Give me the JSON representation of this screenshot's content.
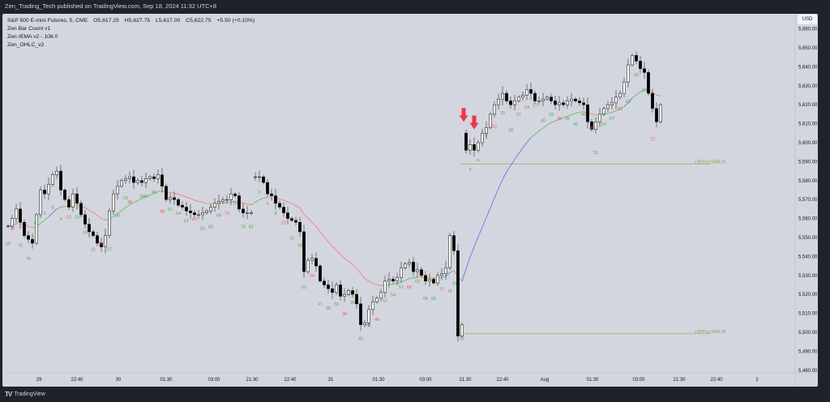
{
  "header": {
    "publish_line": "Zen_Trading_Tech published on TradingView.com, Sep 18, 2024 11:32 UTC+8"
  },
  "legend": {
    "symbol": "S&P 500 E-mini Futures, 5, CME",
    "open": "O5,617.25",
    "high": "H5,627.75",
    "low": "L5,617.00",
    "close": "C5,622.75",
    "change": "+5.50 (+0.10%)",
    "indicators": [
      "Zen Bar Count v1",
      "Zen rEMA v2 - 108.0",
      "Zen_OHLC_v2"
    ]
  },
  "axis": {
    "currency": "USD"
  },
  "footer": {
    "logo": "TV",
    "brand": "TradingView"
  },
  "colors": {
    "background": "#d3d6de",
    "up_body": "#ffffff",
    "down_body": "#000000",
    "ema_up": "#66bb6a",
    "ema_down": "#f77c80",
    "ema_flat": "#ffa726",
    "ema_strong": "#5b7cf0",
    "count_green": "#4caf50",
    "count_red": "#f7525f",
    "ref_line": "#a9ab6e",
    "arrow": "#f23645"
  },
  "chart_data": {
    "type": "candlestick",
    "ylim": [
      5480,
      5660
    ],
    "y_ticks": [
      5480,
      5490,
      5500,
      5510,
      5520,
      5530,
      5540,
      5550,
      5560,
      5570,
      5580,
      5590,
      5600,
      5610,
      5620,
      5630,
      5640,
      5650,
      5660
    ],
    "grid": false,
    "closes": [
      5556,
      5560,
      5565,
      5558,
      5551,
      5549,
      5547,
      5562,
      5575,
      5573,
      5578,
      5583,
      5585,
      5575,
      5570,
      5566,
      5573,
      5568,
      5562,
      5557,
      5553,
      5551,
      5547,
      5545,
      5551,
      5564,
      5573,
      5577,
      5580,
      5581,
      5582,
      5579,
      5580,
      5579,
      5581,
      5582,
      5581,
      5583,
      5577,
      5570,
      5571,
      5570,
      5567,
      5566,
      5564,
      5563,
      5562,
      5562,
      5563,
      5564,
      5566,
      5568,
      5569,
      5570,
      5570,
      5573,
      5572,
      5565,
      5563,
      5563,
      5563,
      5582,
      5582,
      5579,
      5573,
      5572,
      5568,
      5566,
      5563,
      5560,
      5559,
      5558,
      5553,
      5532,
      5538,
      5539,
      5535,
      5527,
      5525,
      5523,
      5521,
      5525,
      5519,
      5520,
      5522,
      5520,
      5515,
      5504,
      5505,
      5512,
      5516,
      5518,
      5521,
      5527,
      5528,
      5527,
      5529,
      5534,
      5536,
      5537,
      5532,
      5533,
      5530,
      5527,
      5528,
      5526,
      5530,
      5531,
      5534,
      5551,
      5543,
      5498,
      5504,
      5596,
      5599,
      5596,
      5600,
      5605,
      5608,
      5615,
      5620,
      5623,
      5626,
      5622,
      5620,
      5622,
      5624,
      5625,
      5628,
      5626,
      5622,
      5622,
      5623,
      5624,
      5622,
      5620,
      5621,
      5620,
      5622,
      5623,
      5622,
      5621,
      5620,
      5611,
      5607,
      5611,
      5615,
      5618,
      5620,
      5621,
      5624,
      5626,
      5632,
      5641,
      5646,
      5643,
      5639,
      5637,
      5626,
      5618,
      5611,
      5620
    ],
    "session_opens": [
      {
        "bar": 61,
        "open": 5582
      },
      {
        "bar": 113,
        "open": 5605
      }
    ],
    "x_ticks": [
      {
        "bar": 7.6,
        "label": "29"
      },
      {
        "bar": 17,
        "label": "22:40"
      },
      {
        "bar": 27.2,
        "label": "30"
      },
      {
        "bar": 39,
        "label": "01:30"
      },
      {
        "bar": 50.8,
        "label": "03:00"
      },
      {
        "bar": 60.2,
        "label": "21:30"
      },
      {
        "bar": 69.6,
        "label": "22:40"
      },
      {
        "bar": 79.6,
        "label": "31"
      },
      {
        "bar": 91.4,
        "label": "01:30"
      },
      {
        "bar": 103,
        "label": "03:00"
      },
      {
        "bar": 112.8,
        "label": "21:30"
      },
      {
        "bar": 122,
        "label": "22:40"
      },
      {
        "bar": 132.4,
        "label": "Aug"
      },
      {
        "bar": 144.2,
        "label": "01:30"
      },
      {
        "bar": 155.6,
        "label": "03:00"
      },
      {
        "bar": 165.6,
        "label": "21:30"
      },
      {
        "bar": 174.8,
        "label": "22:40"
      },
      {
        "bar": 184.8,
        "label": "2"
      }
    ],
    "reference_lines": [
      {
        "label": "y.RTH.hi",
        "value": 5588.75,
        "value_text": "5588.75",
        "from_bar": 111.6
      },
      {
        "label": "y.RTH.lo",
        "value": 5499.25,
        "value_text": "5499.25",
        "from_bar": 112
      }
    ],
    "signal_arrows": [
      {
        "bar": 112.4,
        "price": 5611
      },
      {
        "bar": 115,
        "price": 5607
      }
    ],
    "bar_counts": [
      [
        "69",
        0,
        5546,
        "g"
      ],
      [
        "72",
        1,
        5554,
        "r"
      ],
      [
        "75",
        3,
        5545,
        "g"
      ],
      [
        "78",
        5,
        5538,
        "g"
      ],
      [
        "81",
        7,
        5557,
        "g"
      ],
      [
        "3",
        9,
        5562,
        "g"
      ],
      [
        "6",
        11,
        5565,
        "g"
      ],
      [
        "9",
        13,
        5559,
        "g"
      ],
      [
        "12",
        15,
        5560,
        "r"
      ],
      [
        "15",
        17,
        5560,
        "g"
      ],
      [
        "18",
        19,
        5552,
        "g"
      ],
      [
        "21",
        21,
        5543,
        "g"
      ],
      [
        "24",
        23,
        5546,
        "r"
      ],
      [
        "27",
        25,
        5543,
        "g"
      ],
      [
        "30",
        27,
        5561,
        "g"
      ],
      [
        "33",
        29,
        5570,
        "g"
      ],
      [
        "36",
        30,
        5568,
        "r"
      ],
      [
        "39",
        33,
        5571,
        "g"
      ],
      [
        "42",
        34,
        5571,
        "g"
      ],
      [
        "45",
        36,
        5573,
        "g"
      ],
      [
        "48",
        38,
        5563,
        "r"
      ],
      [
        "51",
        40,
        5564,
        "g"
      ],
      [
        "54",
        42,
        5562,
        "g"
      ],
      [
        "57",
        44,
        5558,
        "g"
      ],
      [
        "60",
        46,
        5559,
        "r"
      ],
      [
        "63",
        48,
        5554,
        "g"
      ],
      [
        "66",
        50,
        5555,
        "g"
      ],
      [
        "69",
        52,
        5561,
        "g"
      ],
      [
        "72",
        54,
        5562,
        "r"
      ],
      [
        "75",
        56,
        5567,
        "g"
      ],
      [
        "78",
        58,
        5555,
        "g"
      ],
      [
        "81",
        60,
        5555,
        "g"
      ],
      [
        "3",
        62,
        5573,
        "g"
      ],
      [
        "6",
        64,
        5567,
        "g"
      ],
      [
        "9",
        66,
        5562,
        "g"
      ],
      [
        "12",
        68,
        5557,
        "r"
      ],
      [
        "15",
        70,
        5549,
        "g"
      ],
      [
        "18",
        72,
        5545,
        "g"
      ],
      [
        "21",
        73,
        5523,
        "g"
      ],
      [
        "24",
        75,
        5529,
        "r"
      ],
      [
        "27",
        77,
        5514,
        "g"
      ],
      [
        "30",
        79,
        5512,
        "g"
      ],
      [
        "33",
        81,
        5514,
        "g"
      ],
      [
        "36",
        83,
        5509,
        "r"
      ],
      [
        "39",
        85,
        5515,
        "g"
      ],
      [
        "42",
        87,
        5496,
        "g"
      ],
      [
        "45",
        89,
        5503,
        "g"
      ],
      [
        "48",
        91,
        5506,
        "r"
      ],
      [
        "51",
        93,
        5516,
        "g"
      ],
      [
        "54",
        95,
        5519,
        "g"
      ],
      [
        "57",
        97,
        5523,
        "g"
      ],
      [
        "60",
        99,
        5523,
        "r"
      ],
      [
        "63",
        101,
        5526,
        "g"
      ],
      [
        "66",
        103,
        5517,
        "g"
      ],
      [
        "69",
        105,
        5517,
        "g"
      ],
      [
        "72",
        107,
        5522,
        "r"
      ],
      [
        "75",
        109,
        5521,
        "g"
      ],
      [
        "78",
        110,
        5525,
        "g"
      ],
      [
        "81",
        112,
        5496,
        "g"
      ],
      [
        "3",
        114,
        5585,
        "g"
      ],
      [
        "6",
        116,
        5590,
        "g"
      ],
      [
        "9",
        118,
        5603,
        "g"
      ],
      [
        "12",
        120,
        5608,
        "r"
      ],
      [
        "15",
        122,
        5615,
        "g"
      ],
      [
        "18",
        124,
        5606,
        "g"
      ],
      [
        "21",
        126,
        5614,
        "g"
      ],
      [
        "24",
        128,
        5618,
        "r"
      ],
      [
        "27",
        130,
        5619,
        "g"
      ],
      [
        "30",
        132,
        5611,
        "g"
      ],
      [
        "33",
        134,
        5614,
        "g"
      ],
      [
        "36",
        136,
        5612,
        "r"
      ],
      [
        "39",
        138,
        5612,
        "g"
      ],
      [
        "42",
        140,
        5609,
        "g"
      ],
      [
        "45",
        142,
        5614,
        "g"
      ],
      [
        "48",
        144,
        5607,
        "r"
      ],
      [
        "51",
        145,
        5594,
        "g"
      ],
      [
        "54",
        147,
        5609,
        "g"
      ],
      [
        "57",
        149,
        5612,
        "g"
      ],
      [
        "60",
        151,
        5617,
        "r"
      ],
      [
        "63",
        153,
        5621,
        "g"
      ],
      [
        "66",
        155,
        5635,
        "g"
      ],
      [
        "69",
        157,
        5627,
        "g"
      ],
      [
        "72",
        159,
        5601,
        "r"
      ]
    ]
  }
}
